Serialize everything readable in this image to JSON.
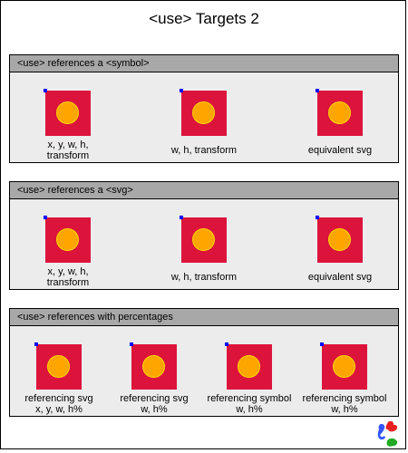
{
  "page": {
    "title": "<use> Targets 2"
  },
  "sections": [
    {
      "header": "<use> references a <symbol>",
      "items": [
        {
          "caption_line1": "x, y, w, h,",
          "caption_line2": "transform"
        },
        {
          "caption_line1": "w, h, transform",
          "caption_line2": ""
        },
        {
          "caption_line1": "equivalent svg",
          "caption_line2": ""
        }
      ]
    },
    {
      "header": "<use> references a <svg>",
      "items": [
        {
          "caption_line1": "x, y, w, h,",
          "caption_line2": "transform"
        },
        {
          "caption_line1": "w, h, transform",
          "caption_line2": ""
        },
        {
          "caption_line1": "equivalent svg",
          "caption_line2": ""
        }
      ]
    },
    {
      "header": "<use> references with percentages",
      "items": [
        {
          "caption_line1": "referencing svg",
          "caption_line2": "x, y, w, h%"
        },
        {
          "caption_line1": "referencing svg",
          "caption_line2": "w, h%"
        },
        {
          "caption_line1": "referencing symbol",
          "caption_line2": "w, h%"
        },
        {
          "caption_line1": "referencing symbol",
          "caption_line2": "w, h%"
        }
      ]
    }
  ],
  "colors": {
    "square": "#dc143c",
    "circle": "#ffa500",
    "circle_stroke": "#ffd700",
    "origin_marker": "#0000ff",
    "section_header": "#a8a8a8",
    "section_body": "#ececec"
  },
  "icons": {
    "logo": "w3c-svg-logo-icon"
  }
}
